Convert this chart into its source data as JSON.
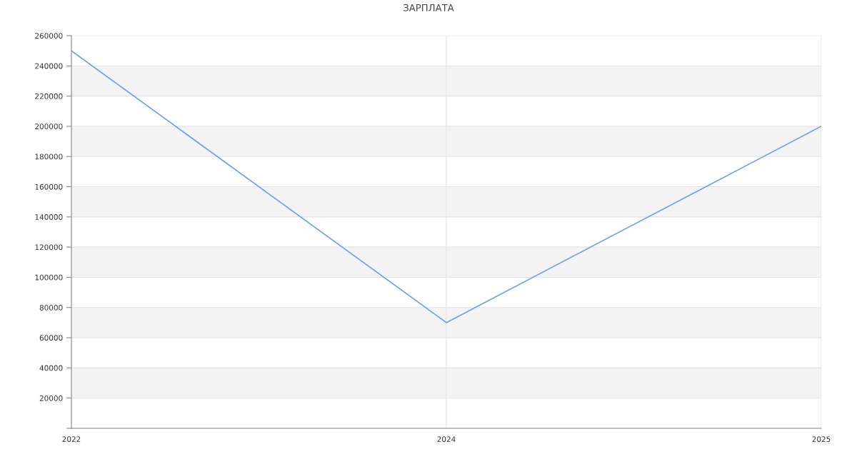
{
  "chart_data": {
    "type": "line",
    "title": "ЗАРПЛАТА",
    "categories": [
      "2022",
      "2024",
      "2025"
    ],
    "series": [
      {
        "color": "#6f9cf5",
        "values": [
          250000,
          70000,
          200000
        ]
      }
    ],
    "ylim": [
      0,
      260000
    ],
    "yticks": [
      {
        "value": 0,
        "label": null
      },
      20000,
      40000,
      60000,
      80000,
      100000,
      120000,
      140000,
      160000,
      180000,
      200000,
      220000,
      240000,
      260000
    ],
    "bands": [
      {
        "axis": "y",
        "from": 20000,
        "to": 40000,
        "color": "#f3f3f3"
      },
      {
        "axis": "y",
        "from": 60000,
        "to": 80000,
        "color": "#f3f3f3"
      },
      {
        "axis": "y",
        "from": 100000,
        "to": 120000,
        "color": "#f3f3f3"
      },
      {
        "axis": "y",
        "from": 140000,
        "to": 160000,
        "color": "#f3f3f3"
      },
      {
        "axis": "y",
        "from": 180000,
        "to": 200000,
        "color": "#f3f3f3"
      },
      {
        "axis": "y",
        "from": 220000,
        "to": 240000,
        "color": "#f3f3f3"
      }
    ],
    "grid": true,
    "marker": "none",
    "line_style": "solid"
  }
}
